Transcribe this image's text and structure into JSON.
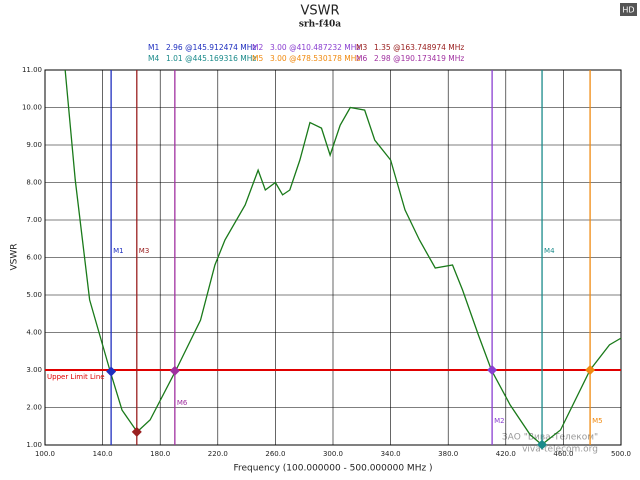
{
  "badge": "HD",
  "watermark": [
    "ЗАО \"Вива-Телеком\"",
    "viva-telecom.org"
  ],
  "chart_data": {
    "type": "line",
    "title": "VSWR",
    "subtitle": "srh-f40a",
    "x_label": "Frequency (100.000000 - 500.000000 MHz )",
    "y_label": "VSWR",
    "xlim": [
      100,
      500
    ],
    "ylim": [
      1,
      11
    ],
    "xticks": [
      {
        "value": 100,
        "label": "100.0"
      },
      {
        "value": 140,
        "label": "140.0"
      },
      {
        "value": 180,
        "label": "180.0"
      },
      {
        "value": 220,
        "label": "220.0"
      },
      {
        "value": 260,
        "label": "260.0"
      },
      {
        "value": 300,
        "label": "300.0"
      },
      {
        "value": 340,
        "label": "340.0"
      },
      {
        "value": 380,
        "label": "380.0"
      },
      {
        "value": 420,
        "label": "420.0"
      },
      {
        "value": 460,
        "label": "460.0"
      },
      {
        "value": 500,
        "label": "500.0"
      }
    ],
    "yticks": [
      {
        "value": 1,
        "label": "1.00"
      },
      {
        "value": 2,
        "label": "2.00"
      },
      {
        "value": 3,
        "label": "3.00"
      },
      {
        "value": 4,
        "label": "4.00"
      },
      {
        "value": 5,
        "label": "5.00"
      },
      {
        "value": 6,
        "label": "6.00"
      },
      {
        "value": 7,
        "label": "7.00"
      },
      {
        "value": 8,
        "label": "8.00"
      },
      {
        "value": 9,
        "label": "9.00"
      },
      {
        "value": 10,
        "label": "10.00"
      },
      {
        "value": 11,
        "label": "11.00"
      }
    ],
    "grid": true,
    "series": [
      {
        "name": "VSWR",
        "color": "#1a7a1a",
        "x": [
          114,
          121,
          131,
          145,
          153.5,
          164,
          173,
          191,
          208,
          218,
          225,
          239,
          248,
          253,
          260,
          265,
          270,
          277,
          284,
          292,
          298,
          305,
          312,
          322,
          329,
          340,
          350,
          360,
          371,
          383,
          390,
          401,
          410,
          423,
          437,
          445,
          458,
          478.5,
          492,
          500
        ],
        "values": [
          11.0,
          8.07,
          4.87,
          3.0,
          1.93,
          1.35,
          1.67,
          3.0,
          4.33,
          5.8,
          6.47,
          7.4,
          8.33,
          7.8,
          8.0,
          7.67,
          7.8,
          8.6,
          9.6,
          9.45,
          8.73,
          9.53,
          10.0,
          9.93,
          9.13,
          8.6,
          7.27,
          6.47,
          5.72,
          5.8,
          5.13,
          3.93,
          3.0,
          2.07,
          1.27,
          1.01,
          1.4,
          3.0,
          3.67,
          3.85
        ]
      }
    ],
    "limit_line": {
      "name": "Upper Limit Line",
      "value": 3.0,
      "color": "#e00000"
    },
    "markers": [
      {
        "name": "M1",
        "x": 145.912474,
        "value": 2.96,
        "label": "2.96 @145.912474 MHz",
        "color": "#1f2fbf"
      },
      {
        "name": "M2",
        "x": 410.487232,
        "value": 3.0,
        "label": "3.00 @410.487232 MHz",
        "color": "#8a3fd0"
      },
      {
        "name": "M3",
        "x": 163.748974,
        "value": 1.35,
        "label": "1.35 @163.748974 MHz",
        "color": "#9a2020"
      },
      {
        "name": "M4",
        "x": 445.169316,
        "value": 1.01,
        "label": "1.01 @445.169316 MHz",
        "color": "#1a8a8a"
      },
      {
        "name": "M5",
        "x": 478.530178,
        "value": 3.0,
        "label": "3.00 @478.530178 MHz",
        "color": "#f08a10"
      },
      {
        "name": "M6",
        "x": 190.173419,
        "value": 2.98,
        "label": "2.98 @190.173419 MHz",
        "color": "#a030a0"
      }
    ]
  }
}
